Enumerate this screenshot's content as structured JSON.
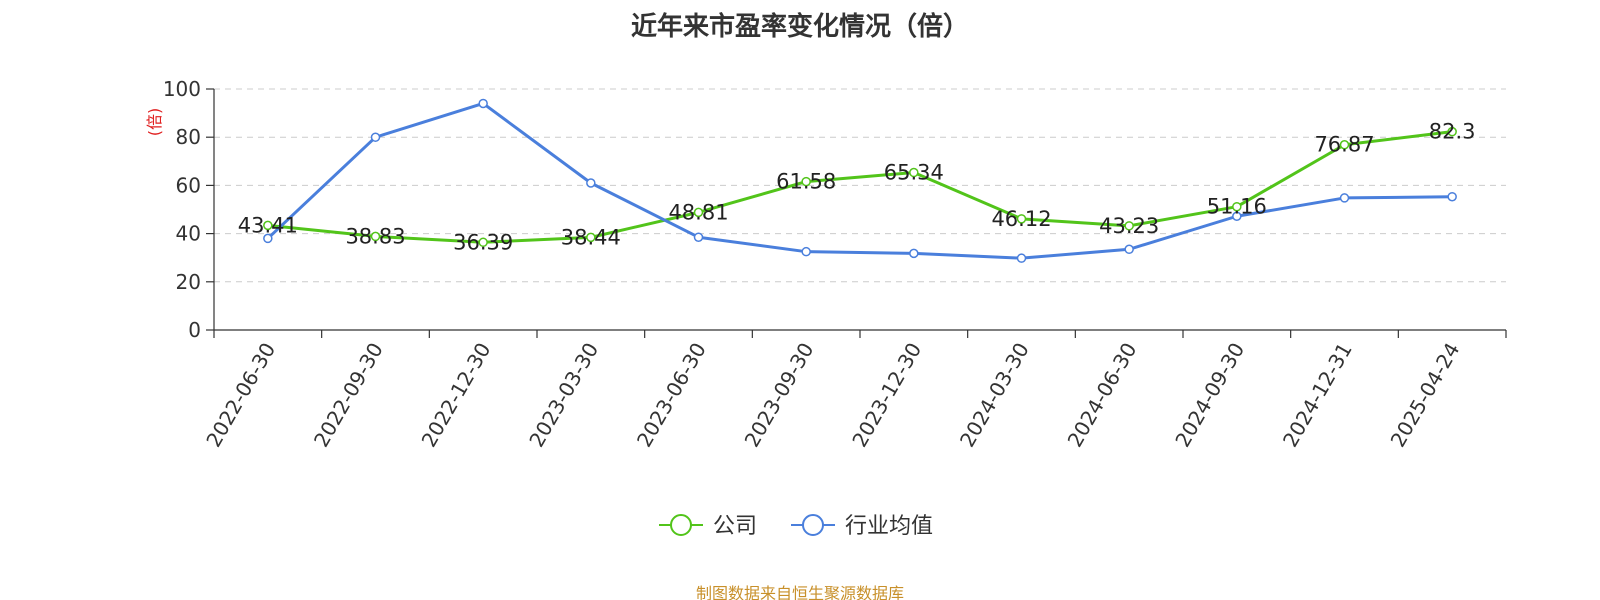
{
  "chart_data": {
    "type": "line",
    "title": "近年来市盈率变化情况（倍）",
    "ylabel": "(倍)",
    "xlabel": "",
    "categories": [
      "2022-06-30",
      "2022-09-30",
      "2022-12-30",
      "2023-03-30",
      "2023-06-30",
      "2023-09-30",
      "2023-12-30",
      "2024-03-30",
      "2024-06-30",
      "2024-09-30",
      "2024-12-31",
      "2025-04-24"
    ],
    "ylim": [
      0,
      100
    ],
    "yticks": [
      0,
      20,
      40,
      60,
      80,
      100
    ],
    "grid": true,
    "legend_position": "bottom",
    "series": [
      {
        "name": "公司",
        "color": "#52c41a",
        "values": [
          43.41,
          38.83,
          36.39,
          38.44,
          48.81,
          61.58,
          65.34,
          46.12,
          43.23,
          51.16,
          76.87,
          82.3
        ],
        "labels": [
          "43.41",
          "38.83",
          "36.39",
          "38.44",
          "48.81",
          "61.58",
          "65.34",
          "46.12",
          "43.23",
          "51.16",
          "76.87",
          "82.3"
        ]
      },
      {
        "name": "行业均值",
        "color": "#4a7fdc",
        "values": [
          38.0,
          80.0,
          94.0,
          61.0,
          38.5,
          32.5,
          31.8,
          29.8,
          33.5,
          47.2,
          54.8,
          55.3
        ]
      }
    ]
  },
  "source_note": "制图数据来自恒生聚源数据库"
}
